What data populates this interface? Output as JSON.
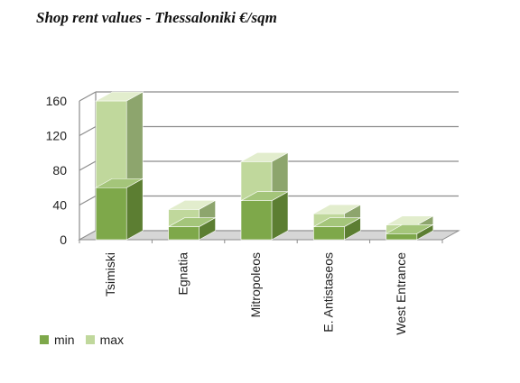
{
  "chart_data": {
    "type": "bar",
    "stacked": true,
    "style": "3d",
    "title": "Shop rent values - Thessaloniki €/sqm",
    "categories": [
      "Tsimiski",
      "Egnatia",
      "Mitropoleos",
      "E. Antistaseos",
      "West Entrance"
    ],
    "series": [
      {
        "name": "min",
        "values": [
          60,
          15,
          45,
          15,
          7
        ]
      },
      {
        "name": "max",
        "values": [
          100,
          20,
          45,
          15,
          10
        ]
      }
    ],
    "ylim": [
      0,
      160
    ],
    "yticks": [
      0,
      40,
      80,
      120,
      160
    ],
    "grid": true,
    "legend_position": "bottom-left",
    "colors": {
      "min_front": "#7ea84a",
      "min_side": "#5c7e32",
      "min_top": "#a4c57a",
      "max_front": "#c0d89c",
      "max_side": "#8da56d",
      "max_top": "#e2edcd",
      "grid": "#8c8c8c",
      "floor": "#d6d6d6"
    }
  },
  "legend": {
    "min_label": "min",
    "max_label": "max"
  }
}
